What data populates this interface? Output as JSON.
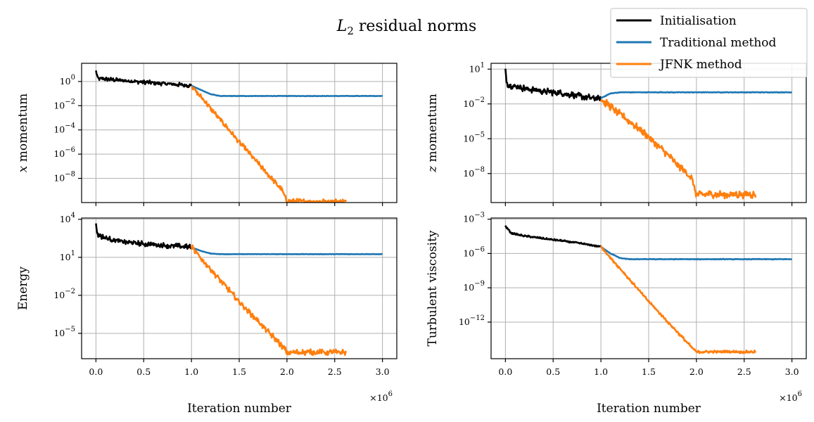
{
  "figure": {
    "title_main": "L",
    "title_sub": "2",
    "title_rest": " residual norms"
  },
  "legend": {
    "placement": "top-right",
    "entries": [
      {
        "label": "Initialisation",
        "color": "#000000"
      },
      {
        "label": "Traditional method",
        "color": "#1f77b4"
      },
      {
        "label": "JFNK method",
        "color": "#ff7f0e"
      }
    ]
  },
  "chart_data": [
    {
      "type": "line",
      "ylabel_var": "x",
      "ylabel_rest": " momentum",
      "xlabel": "",
      "xlim": [
        -150000,
        3150000
      ],
      "ylim_log10": [
        -10,
        1.5
      ],
      "xticks": [
        0,
        500000,
        1000000,
        1500000,
        2000000,
        2500000,
        3000000
      ],
      "xtick_labels": [],
      "yticks_exp": [
        0,
        -2,
        -4,
        -6,
        -8
      ],
      "yscale": "log",
      "grid": true,
      "series": [
        {
          "name": "Initialisation",
          "x": [
            0,
            20000,
            100000,
            300000,
            600000,
            1000000
          ],
          "y_log10": [
            0.85,
            0.25,
            0.2,
            0.05,
            -0.1,
            -0.35
          ],
          "noise": 0.18
        },
        {
          "name": "Traditional method",
          "x": [
            1000000,
            1100000,
            1200000,
            1300000,
            2000000,
            3000000
          ],
          "y_log10": [
            -0.35,
            -0.7,
            -1.05,
            -1.2,
            -1.2,
            -1.2
          ],
          "noise": 0.02
        },
        {
          "name": "JFNK method",
          "x": [
            1000000,
            1500000,
            1950000,
            2000000,
            2620000
          ],
          "y_log10": [
            -0.35,
            -5.0,
            -9.0,
            -9.9,
            -9.9
          ],
          "noise": 0.22
        }
      ]
    },
    {
      "type": "line",
      "ylabel_var": "z",
      "ylabel_rest": " momentum",
      "xlabel": "",
      "xlim": [
        -150000,
        3150000
      ],
      "ylim_log10": [
        -10.5,
        1.5
      ],
      "xticks": [
        0,
        500000,
        1000000,
        1500000,
        2000000,
        2500000,
        3000000
      ],
      "xtick_labels": [],
      "yticks_exp": [
        1,
        -2,
        -5,
        -8
      ],
      "yscale": "log",
      "grid": true,
      "series": [
        {
          "name": "Initialisation",
          "x": [
            0,
            20000,
            100000,
            300000,
            600000,
            1000000
          ],
          "y_log10": [
            0.8,
            -0.3,
            -0.5,
            -0.8,
            -1.1,
            -1.6
          ],
          "noise": 0.3
        },
        {
          "name": "Traditional method",
          "x": [
            1000000,
            1100000,
            1200000,
            1300000,
            2000000,
            3000000
          ],
          "y_log10": [
            -1.5,
            -1.1,
            -1.0,
            -1.0,
            -1.0,
            -1.0
          ],
          "noise": 0.03
        },
        {
          "name": "JFNK method",
          "x": [
            1000000,
            1500000,
            1950000,
            2000000,
            2620000
          ],
          "y_log10": [
            -1.6,
            -4.8,
            -8.4,
            -9.8,
            -9.8
          ],
          "noise": 0.35
        }
      ]
    },
    {
      "type": "line",
      "ylabel_var": "",
      "ylabel_rest": "Energy",
      "xlabel": "Iteration number",
      "xlim": [
        -150000,
        3150000
      ],
      "ylim_log10": [
        -7,
        4.1
      ],
      "xticks": [
        0,
        500000,
        1000000,
        1500000,
        2000000,
        2500000,
        3000000
      ],
      "xtick_labels": [
        "0.0",
        "0.5",
        "1.0",
        "1.5",
        "2.0",
        "2.5",
        "3.0"
      ],
      "x_multiplier_base": "×10",
      "x_multiplier_exp": "6",
      "yticks_exp": [
        4,
        1,
        -2,
        -5
      ],
      "yscale": "log",
      "grid": true,
      "series": [
        {
          "name": "Initialisation",
          "x": [
            0,
            20000,
            100000,
            300000,
            600000,
            1000000
          ],
          "y_log10": [
            3.5,
            2.8,
            2.5,
            2.2,
            2.0,
            1.8
          ],
          "noise": 0.22
        },
        {
          "name": "Traditional method",
          "x": [
            1000000,
            1100000,
            1200000,
            1300000,
            2000000,
            3000000
          ],
          "y_log10": [
            1.8,
            1.5,
            1.3,
            1.25,
            1.25,
            1.25
          ],
          "noise": 0.02
        },
        {
          "name": "JFNK method",
          "x": [
            1000000,
            1500000,
            1950000,
            2000000,
            2620000
          ],
          "y_log10": [
            1.8,
            -2.5,
            -6.0,
            -6.5,
            -6.5
          ],
          "noise": 0.25
        }
      ]
    },
    {
      "type": "line",
      "ylabel_var": "",
      "ylabel_rest": "Turbulent viscosity",
      "xlabel": "Iteration number",
      "xlim": [
        -150000,
        3150000
      ],
      "ylim_log10": [
        -15.2,
        -2.9
      ],
      "xticks": [
        0,
        500000,
        1000000,
        1500000,
        2000000,
        2500000,
        3000000
      ],
      "xtick_labels": [
        "0.0",
        "0.5",
        "1.0",
        "1.5",
        "2.0",
        "2.5",
        "3.0"
      ],
      "x_multiplier_base": "×10",
      "x_multiplier_exp": "6",
      "yticks_exp": [
        -3,
        -6,
        -9,
        -12
      ],
      "yscale": "log",
      "grid": true,
      "series": [
        {
          "name": "Initialisation",
          "x": [
            0,
            20000,
            60000,
            150000,
            400000,
            700000,
            1000000
          ],
          "y_log10": [
            -3.6,
            -3.8,
            -4.2,
            -4.4,
            -4.7,
            -5.0,
            -5.4
          ],
          "noise": 0.08
        },
        {
          "name": "Traditional method",
          "x": [
            1000000,
            1100000,
            1200000,
            1300000,
            2000000,
            3000000
          ],
          "y_log10": [
            -5.4,
            -6.0,
            -6.4,
            -6.5,
            -6.5,
            -6.5
          ],
          "noise": 0.03
        },
        {
          "name": "JFNK method",
          "x": [
            1000000,
            1500000,
            1950000,
            2000000,
            2620000
          ],
          "y_log10": [
            -5.4,
            -10.2,
            -14.2,
            -14.6,
            -14.6
          ],
          "noise": 0.12
        }
      ]
    }
  ]
}
